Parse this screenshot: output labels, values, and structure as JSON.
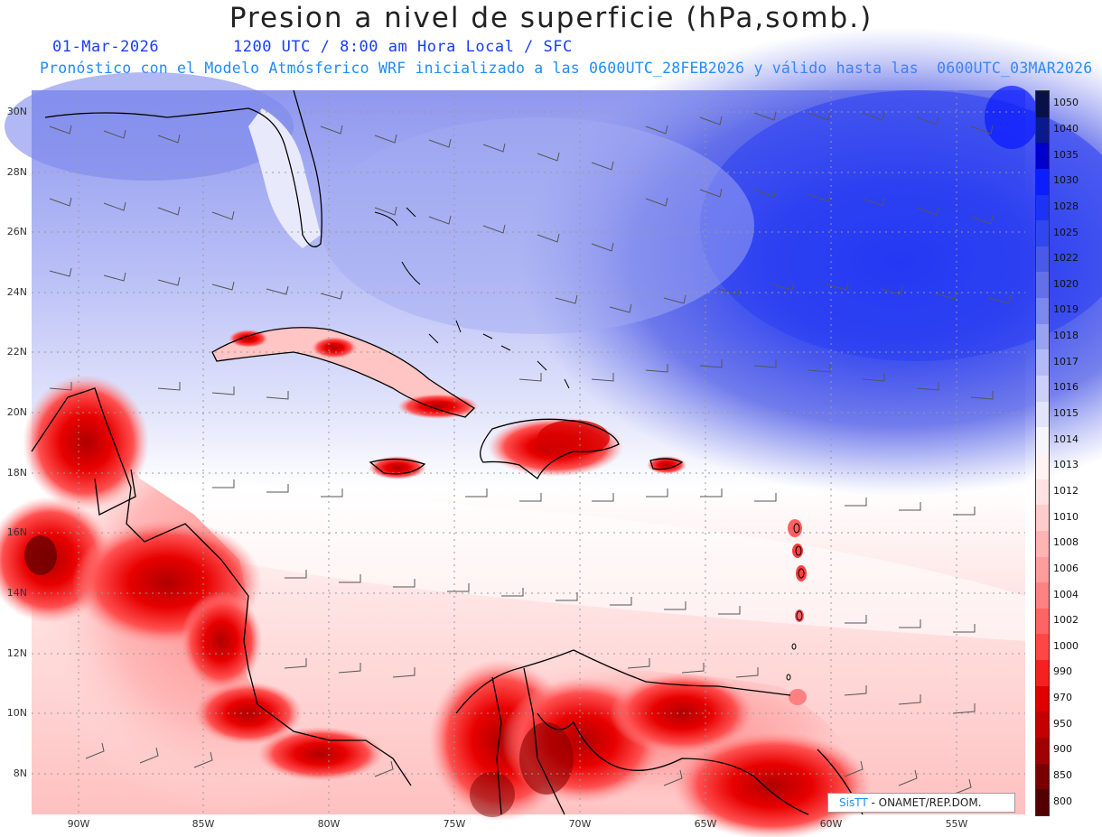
{
  "header": {
    "title": "Presion a nivel de superficie (hPa,somb.)",
    "date": "01-Mar-2026",
    "time_line": "1200 UTC / 8:00 am Hora Local / SFC",
    "model_line": "Pronóstico con el Modelo Atmósferico WRF inicializado a las 0600UTC_28FEB2026 y válido hasta las  0600UTC_03MAR2026"
  },
  "axes": {
    "lat_labels": [
      "30N",
      "28N",
      "26N",
      "24N",
      "22N",
      "20N",
      "18N",
      "16N",
      "14N",
      "12N",
      "10N",
      "8N"
    ],
    "lon_labels": [
      "90W",
      "85W",
      "80W",
      "75W",
      "70W",
      "65W",
      "60W",
      "55W"
    ]
  },
  "colorbar": {
    "levels": [
      "1050",
      "1040",
      "1035",
      "1030",
      "1028",
      "1025",
      "1022",
      "1020",
      "1019",
      "1018",
      "1017",
      "1016",
      "1015",
      "1014",
      "1013",
      "1012",
      "1010",
      "1008",
      "1006",
      "1004",
      "1002",
      "1000",
      "990",
      "970",
      "950",
      "900",
      "850",
      "800"
    ],
    "colors": [
      "#08104a",
      "#0a1a8c",
      "#0000c8",
      "#0a1eff",
      "#1e32f5",
      "#3246f0",
      "#4b5ae6",
      "#6470e8",
      "#7d88ec",
      "#9aa2f0",
      "#b4baf5",
      "#ccd0f8",
      "#e2e4fb",
      "#f5f5fe",
      "#fff2f2",
      "#ffe2e2",
      "#ffcccc",
      "#ffb4b4",
      "#ff9c9c",
      "#ff8282",
      "#ff6464",
      "#ff4646",
      "#f52020",
      "#e00000",
      "#c40000",
      "#a00000",
      "#7a0000",
      "#520000"
    ]
  },
  "credit": {
    "brand": "SisTT",
    "org": "- ONAMET/REP.DOM."
  }
}
